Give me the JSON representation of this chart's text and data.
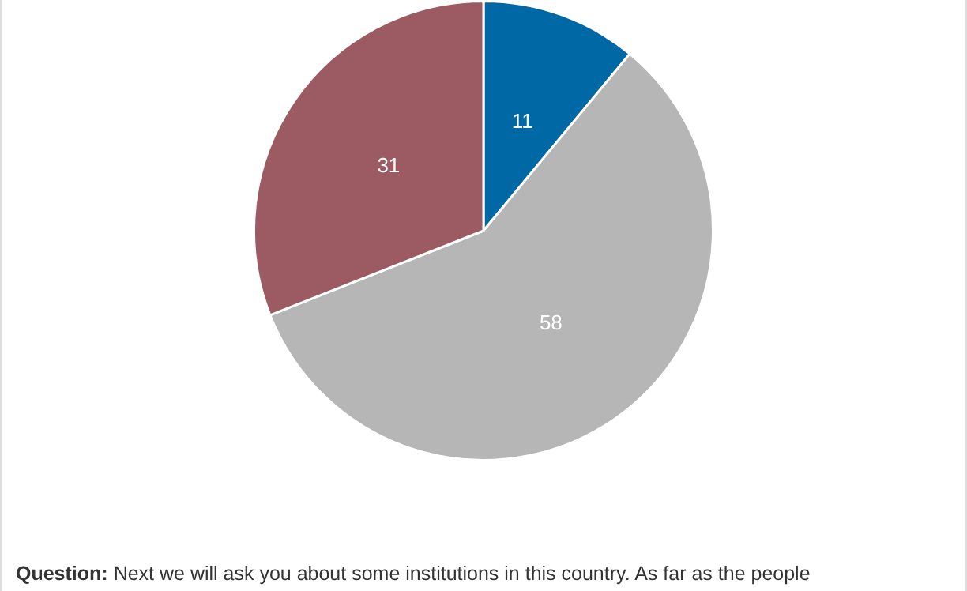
{
  "chart_data": {
    "type": "pie",
    "categories": [
      null,
      null,
      null
    ],
    "values": [
      11,
      58,
      31
    ],
    "colors": [
      "#0068a5",
      "#b6b6b6",
      "#9c5a62"
    ],
    "data_labels": true,
    "legend": false,
    "annotations": [
      "Question: Next we will ask you about some institutions in this country. As far as the people"
    ]
  }
}
